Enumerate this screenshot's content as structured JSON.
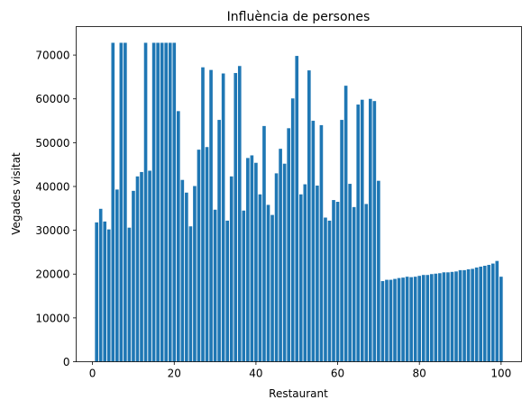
{
  "chart_data": {
    "type": "bar",
    "title": "Influència de persones",
    "xlabel": "Restaurant",
    "ylabel": "Vegades visitat",
    "xlim": [
      -4,
      105
    ],
    "ylim": [
      0,
      76500
    ],
    "xticks": [
      0,
      20,
      40,
      60,
      80,
      100
    ],
    "yticks": [
      0,
      10000,
      20000,
      30000,
      40000,
      50000,
      60000,
      70000
    ],
    "bar_color": "#1f77b4",
    "bar_width": 0.8,
    "grid": false,
    "x": [
      1,
      2,
      3,
      4,
      5,
      6,
      7,
      8,
      9,
      10,
      11,
      12,
      13,
      14,
      15,
      16,
      17,
      18,
      19,
      20,
      21,
      22,
      23,
      24,
      25,
      26,
      27,
      28,
      29,
      30,
      31,
      32,
      33,
      34,
      35,
      36,
      37,
      38,
      39,
      40,
      41,
      42,
      43,
      44,
      45,
      46,
      47,
      48,
      49,
      50,
      51,
      52,
      53,
      54,
      55,
      56,
      57,
      58,
      59,
      60,
      61,
      62,
      63,
      64,
      65,
      66,
      67,
      68,
      69,
      70,
      71,
      72,
      73,
      74,
      75,
      76,
      77,
      78,
      79,
      80,
      81,
      82,
      83,
      84,
      85,
      86,
      87,
      88,
      89,
      90,
      91,
      92,
      93,
      94,
      95,
      96,
      97,
      98,
      99,
      100
    ],
    "values": [
      31800,
      34900,
      32000,
      30200,
      72800,
      39300,
      72800,
      72800,
      30600,
      39000,
      42300,
      43300,
      72800,
      43600,
      72800,
      72800,
      72800,
      72800,
      72800,
      72800,
      57200,
      41500,
      38600,
      30900,
      40100,
      48400,
      67200,
      49000,
      66600,
      34700,
      55200,
      65800,
      32200,
      42300,
      65900,
      67500,
      34500,
      46500,
      47100,
      45400,
      38200,
      53800,
      35800,
      33500,
      43000,
      48600,
      45200,
      53300,
      60100,
      69800,
      38200,
      40500,
      66500,
      55000,
      40200,
      54000,
      32900,
      32200,
      36900,
      36500,
      55200,
      63000,
      40600,
      35300,
      58700,
      59800,
      36000,
      60000,
      59500,
      41300,
      18400,
      18700,
      18700,
      18900,
      19100,
      19200,
      19400,
      19300,
      19400,
      19600,
      19800,
      19800,
      20000,
      20100,
      20200,
      20400,
      20400,
      20500,
      20600,
      20900,
      20900,
      21100,
      21200,
      21500,
      21700,
      21900,
      22100,
      22400,
      23000,
      19400
    ]
  }
}
